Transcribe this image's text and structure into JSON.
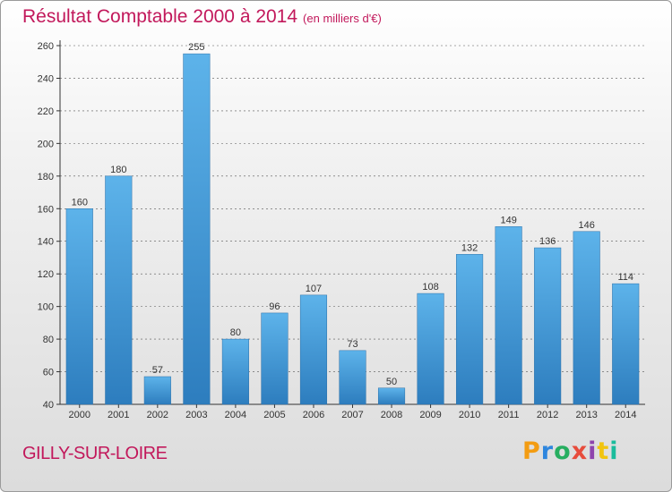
{
  "header": {
    "title": "Résultat Comptable 2000 à 2014",
    "subtitle": "(en milliers d'€)"
  },
  "footer": {
    "commune": "GILLY-SUR-LOIRE",
    "logo_letters": [
      "P",
      "r",
      "o",
      "x",
      "i",
      "t",
      "i"
    ],
    "logo_colors": [
      "#f39c12",
      "#2e86de",
      "#27ae60",
      "#e74c3c",
      "#8e44ad",
      "#f1c40f",
      "#1abc9c"
    ]
  },
  "colors": {
    "bar_top": "#5db3ea",
    "bar_bottom": "#2d7dbe",
    "grid": "#555555"
  },
  "chart_data": {
    "type": "bar",
    "title": "Résultat Comptable 2000 à 2014",
    "subtitle": "(en milliers d'€)",
    "categories": [
      "2000",
      "2001",
      "2002",
      "2003",
      "2004",
      "2005",
      "2006",
      "2007",
      "2008",
      "2009",
      "2010",
      "2011",
      "2012",
      "2013",
      "2014"
    ],
    "values": [
      160,
      180,
      57,
      255,
      80,
      96,
      107,
      73,
      50,
      108,
      132,
      149,
      136,
      146,
      114
    ],
    "ylim": [
      40,
      260
    ],
    "yticks": [
      40,
      60,
      80,
      100,
      120,
      140,
      160,
      180,
      200,
      220,
      240,
      260
    ],
    "grid": true,
    "grid_style": "dashed"
  }
}
